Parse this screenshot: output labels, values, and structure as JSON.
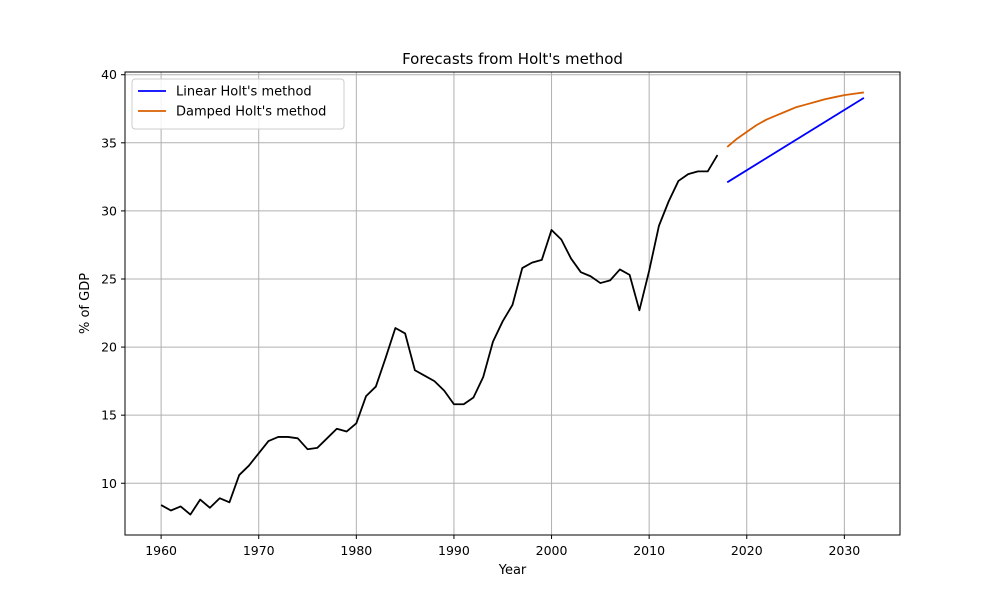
{
  "chart_data": {
    "type": "line",
    "title": "Forecasts from Holt's method",
    "xlabel": "Year",
    "ylabel": "% of GDP",
    "xlim": [
      1956.3,
      2035.7
    ],
    "ylim": [
      6.2,
      40.2
    ],
    "xticks": [
      1960,
      1970,
      1980,
      1990,
      2000,
      2010,
      2020,
      2030
    ],
    "yticks": [
      10,
      15,
      20,
      25,
      30,
      35,
      40
    ],
    "grid": true,
    "legend_position": "top-left",
    "series": [
      {
        "name": "",
        "color": "#000000",
        "x": [
          1960,
          1961,
          1962,
          1963,
          1964,
          1965,
          1966,
          1967,
          1968,
          1969,
          1970,
          1971,
          1972,
          1973,
          1974,
          1975,
          1976,
          1977,
          1978,
          1979,
          1980,
          1981,
          1982,
          1983,
          1984,
          1985,
          1986,
          1987,
          1988,
          1989,
          1990,
          1991,
          1992,
          1993,
          1994,
          1995,
          1996,
          1997,
          1998,
          1999,
          2000,
          2001,
          2002,
          2003,
          2004,
          2005,
          2006,
          2007,
          2008,
          2009,
          2010,
          2011,
          2012,
          2013,
          2014,
          2015,
          2016,
          2017
        ],
        "y": [
          8.4,
          8.0,
          8.3,
          7.7,
          8.8,
          8.2,
          8.9,
          8.6,
          10.6,
          11.3,
          12.2,
          13.1,
          13.4,
          13.4,
          13.3,
          12.5,
          12.6,
          13.3,
          14.0,
          13.8,
          14.4,
          16.4,
          17.1,
          19.2,
          21.4,
          21.0,
          18.3,
          17.9,
          17.5,
          16.8,
          15.8,
          15.8,
          16.3,
          17.8,
          20.4,
          21.9,
          23.1,
          25.8,
          26.2,
          26.4,
          28.6,
          27.9,
          26.5,
          25.5,
          25.2,
          24.7,
          24.9,
          25.7,
          25.3,
          22.7,
          25.6,
          28.9,
          30.7,
          32.2,
          32.7,
          32.9,
          32.9,
          34.1
        ]
      },
      {
        "name": "Linear Holt's method",
        "color": "#0000ff",
        "x": [
          2018,
          2032
        ],
        "y": [
          32.1,
          38.3
        ]
      },
      {
        "name": "Damped Holt's method",
        "color": "#d95f02",
        "x": [
          2018,
          2019,
          2020,
          2021,
          2022,
          2023,
          2024,
          2025,
          2026,
          2027,
          2028,
          2029,
          2030,
          2031,
          2032
        ],
        "y": [
          34.7,
          35.3,
          35.8,
          36.3,
          36.7,
          37.0,
          37.3,
          37.6,
          37.8,
          38.0,
          38.2,
          38.35,
          38.5,
          38.6,
          38.7
        ]
      }
    ]
  }
}
